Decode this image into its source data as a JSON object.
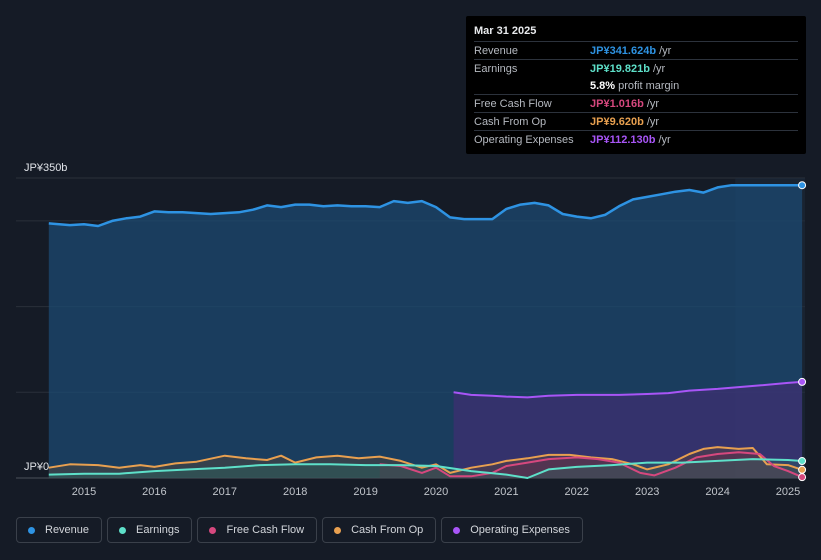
{
  "chart_data": {
    "type": "area",
    "y_axis": {
      "top_label": "JP¥350b",
      "bottom_label": "JP¥0",
      "ylim": [
        0,
        350
      ]
    },
    "x_ticks": [
      "2015",
      "2016",
      "2017",
      "2018",
      "2019",
      "2020",
      "2021",
      "2022",
      "2023",
      "2024",
      "2025"
    ],
    "series": [
      {
        "name": "Revenue",
        "color": "#2e93e3",
        "x": [
          2014.5,
          2014.8,
          2015.0,
          2015.2,
          2015.4,
          2015.6,
          2015.8,
          2016.0,
          2016.2,
          2016.4,
          2016.6,
          2016.8,
          2017.0,
          2017.2,
          2017.4,
          2017.6,
          2017.8,
          2018.0,
          2018.2,
          2018.4,
          2018.6,
          2018.8,
          2019.0,
          2019.2,
          2019.4,
          2019.6,
          2019.8,
          2020.0,
          2020.2,
          2020.4,
          2020.6,
          2020.8,
          2021.0,
          2021.2,
          2021.4,
          2021.6,
          2021.8,
          2022.0,
          2022.2,
          2022.4,
          2022.6,
          2022.8,
          2023.0,
          2023.2,
          2023.4,
          2023.6,
          2023.8,
          2024.0,
          2024.2,
          2024.4,
          2024.6,
          2024.8,
          2025.0,
          2025.2
        ],
        "values": [
          297,
          295,
          296,
          294,
          300,
          303,
          305,
          311,
          310,
          310,
          309,
          308,
          309,
          310,
          313,
          318,
          316,
          319,
          319,
          317,
          318,
          317,
          317,
          316,
          323,
          321,
          323,
          316,
          304,
          302,
          302,
          302,
          314,
          319,
          321,
          318,
          308,
          305,
          303,
          307,
          317,
          325,
          328,
          331,
          334,
          336,
          333,
          339,
          341.6,
          341.6,
          341.6,
          341.6,
          341.6,
          341.6
        ]
      },
      {
        "name": "Earnings",
        "color": "#5ee0c9",
        "x": [
          2014.5,
          2015.0,
          2015.5,
          2016.0,
          2016.5,
          2017.0,
          2017.5,
          2018.0,
          2018.5,
          2019.0,
          2019.5,
          2020.0,
          2020.5,
          2021.0,
          2021.3,
          2021.6,
          2022.0,
          2022.5,
          2023.0,
          2023.5,
          2024.0,
          2024.5,
          2025.0,
          2025.2
        ],
        "values": [
          4,
          5,
          5,
          8,
          10,
          12,
          15,
          16,
          16,
          15,
          15,
          14,
          8,
          4,
          0,
          10,
          13,
          15,
          18,
          18,
          20,
          22,
          21,
          19.8
        ]
      },
      {
        "name": "Free Cash Flow",
        "color": "#d6487e",
        "x": [
          2019.2,
          2019.5,
          2019.8,
          2020.0,
          2020.2,
          2020.5,
          2020.8,
          2021.0,
          2021.3,
          2021.6,
          2022.0,
          2022.3,
          2022.6,
          2022.9,
          2023.1,
          2023.4,
          2023.7,
          2024.0,
          2024.3,
          2024.6,
          2024.8,
          2025.0,
          2025.2
        ],
        "values": [
          16,
          14,
          6,
          12,
          2,
          2,
          6,
          14,
          18,
          22,
          24,
          22,
          18,
          6,
          3,
          12,
          24,
          28,
          30,
          28,
          14,
          8,
          1
        ]
      },
      {
        "name": "Cash From Op",
        "color": "#e8a050",
        "x": [
          2014.5,
          2014.8,
          2015.2,
          2015.5,
          2015.8,
          2016.0,
          2016.3,
          2016.6,
          2017.0,
          2017.3,
          2017.6,
          2017.8,
          2018.0,
          2018.3,
          2018.6,
          2018.9,
          2019.2,
          2019.5,
          2019.8,
          2020.0,
          2020.2,
          2020.5,
          2020.8,
          2021.0,
          2021.3,
          2021.6,
          2021.9,
          2022.2,
          2022.5,
          2022.8,
          2023.0,
          2023.3,
          2023.6,
          2023.8,
          2024.0,
          2024.3,
          2024.5,
          2024.7,
          2025.0,
          2025.2
        ],
        "values": [
          12,
          16,
          15,
          12,
          15,
          13,
          17,
          19,
          26,
          23,
          21,
          26,
          18,
          24,
          26,
          23,
          25,
          20,
          12,
          16,
          6,
          12,
          16,
          20,
          23,
          27,
          27,
          24,
          22,
          16,
          10,
          16,
          28,
          34,
          36,
          34,
          35,
          16,
          15,
          9.6
        ]
      },
      {
        "name": "Operating Expenses",
        "color": "#a855f7",
        "x": [
          2020.25,
          2020.5,
          2020.8,
          2021.0,
          2021.3,
          2021.6,
          2022.0,
          2022.3,
          2022.6,
          2023.0,
          2023.3,
          2023.6,
          2024.0,
          2024.3,
          2024.6,
          2025.0,
          2025.2
        ],
        "values": [
          100,
          97,
          96,
          95,
          94,
          96,
          97,
          97,
          97,
          98,
          99,
          102,
          104,
          106,
          108,
          111,
          112.1
        ]
      }
    ]
  },
  "tooltip": {
    "date": "Mar 31 2025",
    "rows": [
      {
        "label": "Revenue",
        "value": "JP¥341.624b",
        "unit": "/yr",
        "color": "#2e93e3"
      },
      {
        "label": "Earnings",
        "value": "JP¥19.821b",
        "unit": "/yr",
        "color": "#5ee0c9"
      },
      {
        "label": "",
        "value": "5.8%",
        "unit": "profit margin",
        "color": "#ffffff"
      },
      {
        "label": "Free Cash Flow",
        "value": "JP¥1.016b",
        "unit": "/yr",
        "color": "#d6487e"
      },
      {
        "label": "Cash From Op",
        "value": "JP¥9.620b",
        "unit": "/yr",
        "color": "#e8a050"
      },
      {
        "label": "Operating Expenses",
        "value": "JP¥112.130b",
        "unit": "/yr",
        "color": "#a855f7"
      }
    ]
  },
  "legend": [
    {
      "label": "Revenue",
      "color": "#2e93e3"
    },
    {
      "label": "Earnings",
      "color": "#5ee0c9"
    },
    {
      "label": "Free Cash Flow",
      "color": "#d6487e"
    },
    {
      "label": "Cash From Op",
      "color": "#e8a050"
    },
    {
      "label": "Operating Expenses",
      "color": "#a855f7"
    }
  ]
}
